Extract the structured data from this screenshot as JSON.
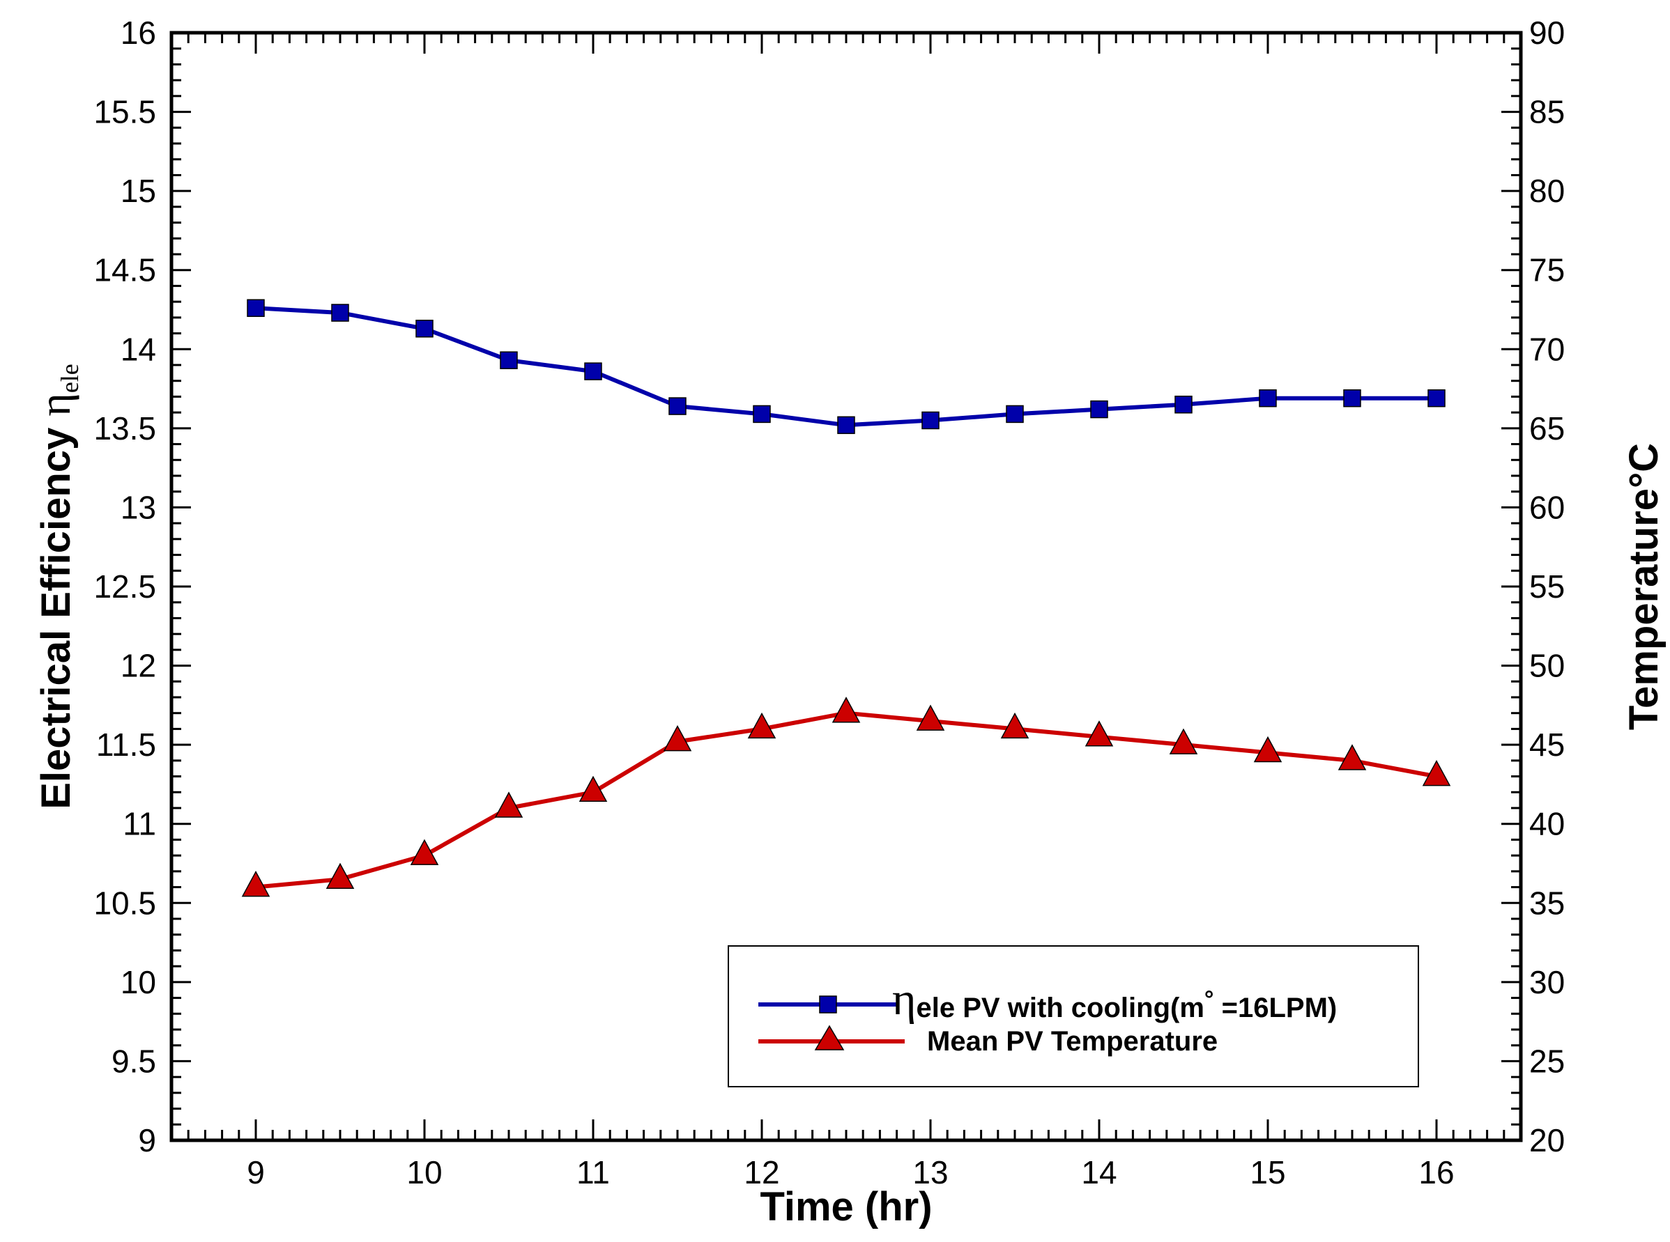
{
  "chart_data": {
    "type": "line",
    "xlabel": "Time (hr)",
    "ylabel_left": {
      "main": "Electrical Efficiency ",
      "symbol": "η",
      "subscript": "ele"
    },
    "ylabel_right": "Temperature°C",
    "xlim": [
      8.5,
      16.5
    ],
    "ylim_left": [
      9,
      16
    ],
    "ylim_right": [
      20,
      90
    ],
    "x_ticks": [
      9,
      10,
      11,
      12,
      13,
      14,
      15,
      16
    ],
    "x_tick_labels": [
      "9",
      "10",
      "11",
      "12",
      "13",
      "14",
      "15",
      "16"
    ],
    "y_left_ticks": [
      9,
      9.5,
      10,
      10.5,
      11,
      11.5,
      12,
      12.5,
      13,
      13.5,
      14,
      14.5,
      15,
      15.5,
      16
    ],
    "y_left_tick_labels": [
      "9",
      "9.5",
      "10",
      "10.5",
      "11",
      "11.5",
      "12",
      "12.5",
      "13",
      "13.5",
      "14",
      "14.5",
      "15",
      "15.5",
      "16"
    ],
    "y_right_ticks": [
      20,
      25,
      30,
      35,
      40,
      45,
      50,
      55,
      60,
      65,
      70,
      75,
      80,
      85,
      90
    ],
    "y_right_tick_labels": [
      "20",
      "25",
      "30",
      "35",
      "40",
      "45",
      "50",
      "55",
      "60",
      "65",
      "70",
      "75",
      "80",
      "85",
      "90"
    ],
    "x": [
      9,
      9.5,
      10,
      10.5,
      11,
      11.5,
      12,
      12.5,
      13,
      13.5,
      14,
      14.5,
      15,
      15.5,
      16
    ],
    "series": [
      {
        "name": "ηele PV with cooling(m°=16LPM)",
        "legend_symbol": "η",
        "legend_subscript": "ele",
        "legend_text": " PV with cooling(m",
        "legend_mark": "°",
        "legend_tail": " =16LPM)",
        "axis": "left",
        "marker": "square",
        "color": "#0000aa",
        "values": [
          14.26,
          14.23,
          14.13,
          13.93,
          13.86,
          13.64,
          13.59,
          13.52,
          13.55,
          13.59,
          13.62,
          13.65,
          13.69,
          13.69,
          13.69
        ]
      },
      {
        "name": "Mean PV Temperature",
        "legend_text": "Mean PV Temperature",
        "axis": "right",
        "marker": "triangle",
        "color": "#cc0000",
        "values": [
          36.0,
          36.5,
          38.0,
          41.0,
          42.0,
          45.2,
          46.0,
          47.0,
          46.5,
          46.0,
          45.5,
          45.0,
          44.5,
          44.0,
          43.0
        ]
      }
    ]
  }
}
